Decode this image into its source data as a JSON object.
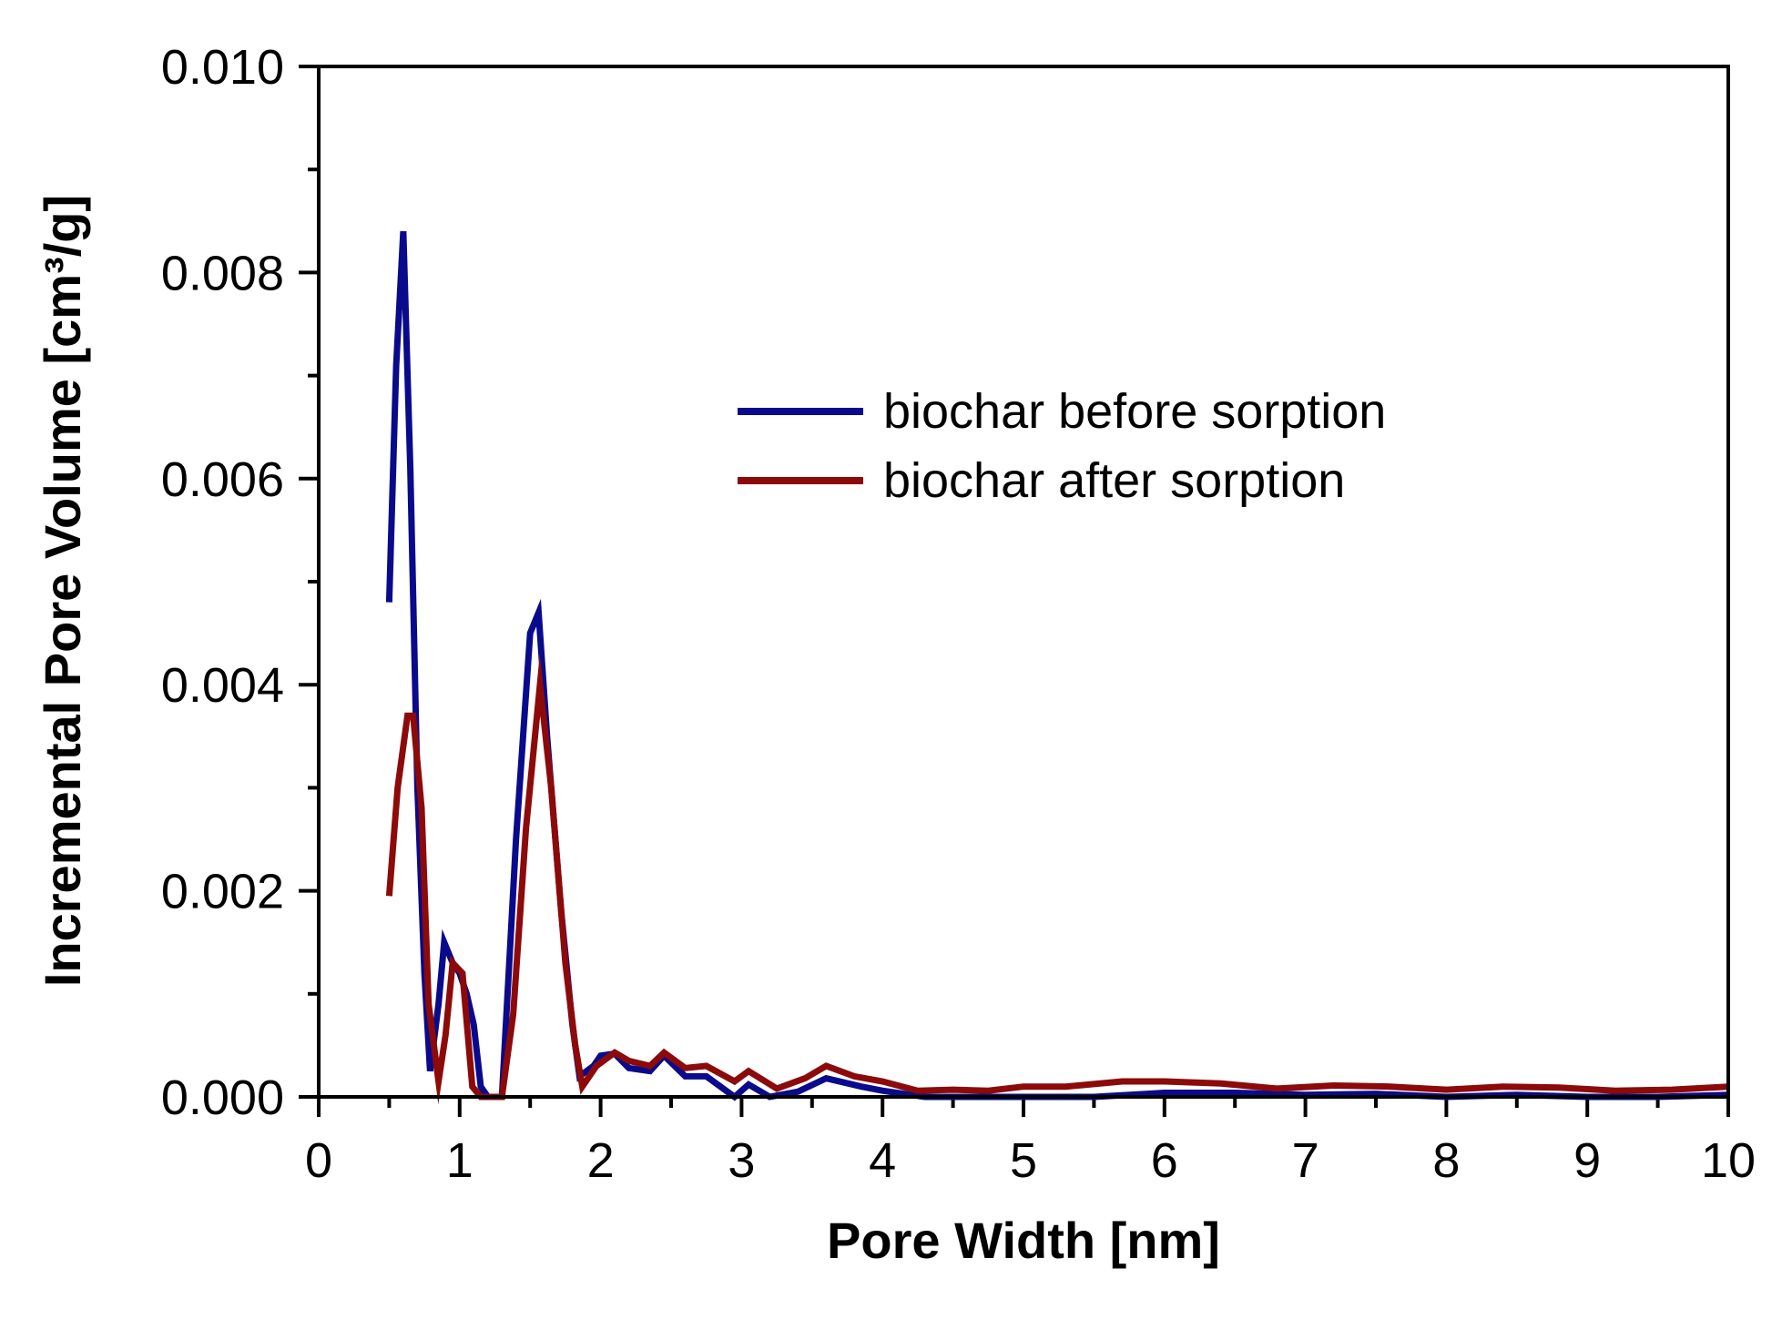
{
  "chart_data": {
    "type": "line",
    "title": "",
    "xlabel": "Pore Width [nm]",
    "ylabel": "Incremental Pore Volume [cm³/g]",
    "xlim": [
      0,
      10
    ],
    "ylim": [
      0,
      0.01
    ],
    "x_ticks": [
      "0",
      "1",
      "2",
      "3",
      "4",
      "5",
      "6",
      "7",
      "8",
      "9",
      "10"
    ],
    "y_ticks": [
      "0.000",
      "0.002",
      "0.004",
      "0.006",
      "0.008",
      "0.010"
    ],
    "grid": false,
    "legend_position": "upper-right-center",
    "series": [
      {
        "name": "biochar before sorption",
        "color": "#0a0a8c",
        "points": [
          [
            0.5,
            0.0048
          ],
          [
            0.55,
            0.0071
          ],
          [
            0.6,
            0.0084
          ],
          [
            0.65,
            0.0061
          ],
          [
            0.7,
            0.003
          ],
          [
            0.75,
            0.0012
          ],
          [
            0.79,
            0.00025
          ],
          [
            0.85,
            0.0009
          ],
          [
            0.89,
            0.0015
          ],
          [
            0.95,
            0.0013
          ],
          [
            1.0,
            0.0012
          ],
          [
            1.05,
            0.001
          ],
          [
            1.1,
            0.0007
          ],
          [
            1.15,
            0.0001
          ],
          [
            1.2,
            0.0
          ],
          [
            1.3,
            0.0
          ],
          [
            1.4,
            0.0025
          ],
          [
            1.5,
            0.0045
          ],
          [
            1.56,
            0.0047
          ],
          [
            1.62,
            0.0035
          ],
          [
            1.72,
            0.0018
          ],
          [
            1.8,
            0.0007
          ],
          [
            1.85,
            0.0002
          ],
          [
            1.95,
            0.0003
          ],
          [
            2.0,
            0.0004
          ],
          [
            2.1,
            0.00042
          ],
          [
            2.2,
            0.00028
          ],
          [
            2.35,
            0.00025
          ],
          [
            2.45,
            0.0004
          ],
          [
            2.6,
            0.0002
          ],
          [
            2.75,
            0.0002
          ],
          [
            2.95,
            0.0
          ],
          [
            3.05,
            0.00012
          ],
          [
            3.2,
            0.0
          ],
          [
            3.4,
            5e-05
          ],
          [
            3.6,
            0.00018
          ],
          [
            3.85,
            0.0001
          ],
          [
            4.0,
            6e-05
          ],
          [
            4.3,
            0.0
          ],
          [
            4.6,
            0.0
          ],
          [
            5.0,
            0.0
          ],
          [
            5.5,
            0.0
          ],
          [
            6.0,
            4e-05
          ],
          [
            6.5,
            4e-05
          ],
          [
            7.0,
            2e-05
          ],
          [
            7.5,
            3e-05
          ],
          [
            8.0,
            0.0
          ],
          [
            8.5,
            2e-05
          ],
          [
            9.0,
            0.0
          ],
          [
            9.5,
            0.0
          ],
          [
            10.0,
            2e-05
          ]
        ]
      },
      {
        "name": "biochar after sorption",
        "color": "#8c0a0a",
        "points": [
          [
            0.5,
            0.00195
          ],
          [
            0.56,
            0.003
          ],
          [
            0.63,
            0.0037
          ],
          [
            0.67,
            0.0037
          ],
          [
            0.73,
            0.0028
          ],
          [
            0.78,
            0.0009
          ],
          [
            0.85,
            0.00015
          ],
          [
            0.9,
            0.0006
          ],
          [
            0.95,
            0.0013
          ],
          [
            1.02,
            0.0012
          ],
          [
            1.09,
            0.0001
          ],
          [
            1.15,
            0.0
          ],
          [
            1.3,
            0.0
          ],
          [
            1.38,
            0.0008
          ],
          [
            1.47,
            0.0026
          ],
          [
            1.57,
            0.004
          ],
          [
            1.65,
            0.003
          ],
          [
            1.75,
            0.0013
          ],
          [
            1.82,
            0.0005
          ],
          [
            1.87,
            0.0001
          ],
          [
            1.97,
            0.0003
          ],
          [
            2.1,
            0.00043
          ],
          [
            2.2,
            0.00035
          ],
          [
            2.35,
            0.0003
          ],
          [
            2.45,
            0.00043
          ],
          [
            2.6,
            0.00028
          ],
          [
            2.75,
            0.0003
          ],
          [
            2.95,
            0.00015
          ],
          [
            3.05,
            0.00025
          ],
          [
            3.25,
            8e-05
          ],
          [
            3.45,
            0.00018
          ],
          [
            3.6,
            0.0003
          ],
          [
            3.8,
            0.0002
          ],
          [
            4.0,
            0.00015
          ],
          [
            4.25,
            6e-05
          ],
          [
            4.5,
            7e-05
          ],
          [
            4.75,
            6e-05
          ],
          [
            5.0,
            0.0001
          ],
          [
            5.3,
            0.0001
          ],
          [
            5.7,
            0.00015
          ],
          [
            6.0,
            0.00015
          ],
          [
            6.4,
            0.00013
          ],
          [
            6.8,
            8e-05
          ],
          [
            7.2,
            0.00011
          ],
          [
            7.6,
            0.0001
          ],
          [
            8.0,
            7e-05
          ],
          [
            8.4,
            0.0001
          ],
          [
            8.8,
            9e-05
          ],
          [
            9.2,
            6e-05
          ],
          [
            9.6,
            7e-05
          ],
          [
            10.0,
            0.0001
          ]
        ]
      }
    ]
  }
}
